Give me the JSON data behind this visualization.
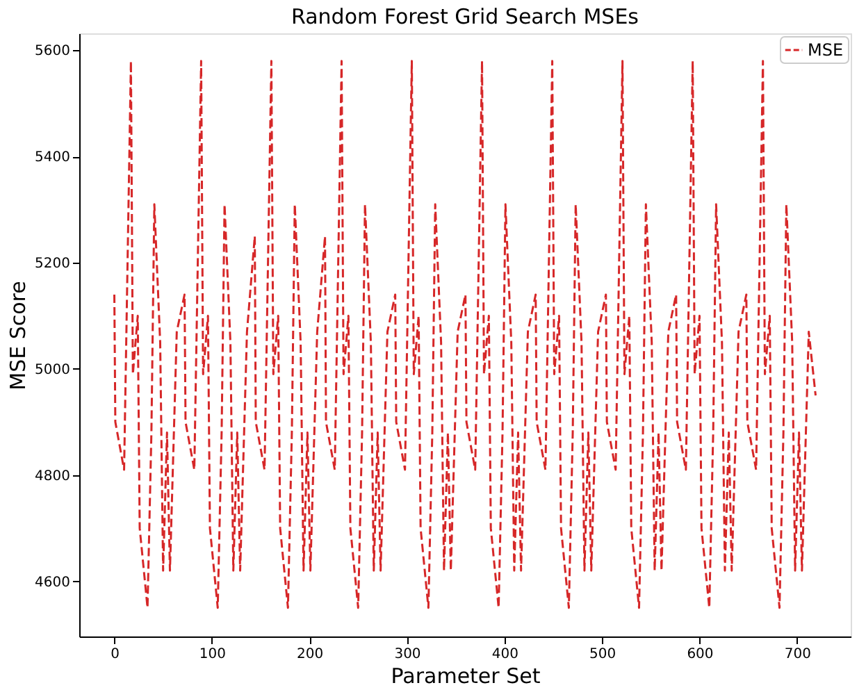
{
  "chart_data": {
    "type": "line",
    "title": "Random Forest Grid Search MSEs",
    "xlabel": "Parameter Set",
    "ylabel": "MSE Score",
    "xlim": [
      -36,
      755
    ],
    "ylim": [
      4496,
      5632
    ],
    "xticks": [
      0,
      100,
      200,
      300,
      400,
      500,
      600,
      700
    ],
    "yticks": [
      4600,
      4800,
      5000,
      5200,
      5400,
      5600
    ],
    "grid": false,
    "legend": "top right",
    "line_style": "dashed",
    "marker": "none",
    "series": [
      {
        "name": "MSE",
        "color": "#d62728",
        "x": [
          0,
          1,
          10,
          17,
          19,
          24,
          26,
          34,
          38,
          41,
          47,
          50,
          54,
          57,
          64,
          72,
          73,
          82,
          89,
          91,
          96,
          98,
          106,
          110,
          113,
          119,
          122,
          126,
          129,
          136,
          144,
          145,
          154,
          161,
          163,
          168,
          170,
          178,
          182,
          185,
          191,
          194,
          198,
          201,
          208,
          216,
          217,
          226,
          233,
          235,
          240,
          242,
          250,
          254,
          257,
          263,
          266,
          270,
          273,
          280,
          288,
          289,
          298,
          305,
          307,
          312,
          314,
          322,
          326,
          329,
          335,
          338,
          342,
          345,
          352,
          360,
          361,
          370,
          377,
          379,
          384,
          386,
          394,
          398,
          401,
          407,
          410,
          414,
          417,
          424,
          432,
          433,
          442,
          449,
          451,
          456,
          458,
          466,
          470,
          473,
          479,
          482,
          486,
          489,
          496,
          504,
          505,
          514,
          521,
          523,
          528,
          530,
          538,
          542,
          545,
          551,
          554,
          558,
          561,
          568,
          576,
          577,
          586,
          593,
          595,
          600,
          602,
          610,
          614,
          617,
          623,
          626,
          630,
          633,
          640,
          648,
          649,
          658,
          665,
          667,
          672,
          674,
          682,
          686,
          689,
          695,
          698,
          702,
          705,
          712,
          719
        ],
        "values": [
          5140,
          4900,
          4810,
          5580,
          4990,
          5100,
          4700,
          4550,
          4880,
          5310,
          5050,
          4620,
          4880,
          4620,
          5070,
          5140,
          4900,
          4810,
          5580,
          4990,
          5100,
          4700,
          4550,
          4880,
          5310,
          5050,
          4620,
          4880,
          4620,
          5070,
          5250,
          4900,
          4810,
          5580,
          4990,
          5100,
          4700,
          4550,
          4880,
          5310,
          5050,
          4620,
          4880,
          4620,
          5070,
          5250,
          4900,
          4810,
          5580,
          4990,
          5100,
          4700,
          4550,
          4880,
          5310,
          5050,
          4620,
          4880,
          4620,
          5070,
          5140,
          4900,
          4810,
          5580,
          4990,
          5100,
          4700,
          4550,
          4880,
          5310,
          5050,
          4620,
          4880,
          4620,
          5070,
          5140,
          4900,
          4810,
          5580,
          4990,
          5100,
          4700,
          4550,
          4880,
          5310,
          5050,
          4620,
          4880,
          4620,
          5070,
          5140,
          4900,
          4810,
          5580,
          4990,
          5100,
          4700,
          4550,
          4880,
          5310,
          5050,
          4620,
          4880,
          4620,
          5070,
          5140,
          4900,
          4810,
          5580,
          4990,
          5100,
          4700,
          4550,
          4880,
          5310,
          5050,
          4620,
          4880,
          4620,
          5070,
          5140,
          4900,
          4810,
          5580,
          4990,
          5100,
          4700,
          4550,
          4880,
          5310,
          5050,
          4620,
          4880,
          4620,
          5070,
          5140,
          4900,
          4810,
          5580,
          4990,
          5100,
          4700,
          4550,
          4880,
          5310,
          5050,
          4620,
          4880,
          4620,
          5070,
          4950
        ]
      }
    ]
  }
}
